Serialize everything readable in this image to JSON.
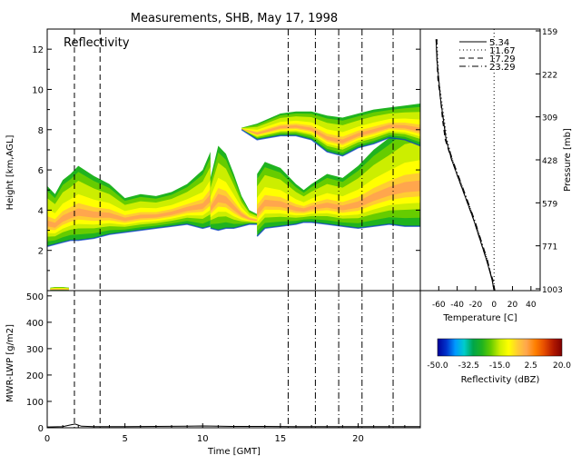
{
  "title": "Measurements, SHB, May 17, 1998",
  "colors": {
    "background": "#ffffff",
    "axes": "#000000",
    "colormap": [
      "#000099",
      "#0033cc",
      "#0099ff",
      "#00cccc",
      "#00a64a",
      "#1fb31f",
      "#66cc00",
      "#ccee00",
      "#ffff00",
      "#ffcc33",
      "#ffa64d",
      "#ff8000",
      "#e64d00",
      "#b31a00",
      "#800000"
    ]
  },
  "chart_data": [
    {
      "id": "reflectivity",
      "type": "heatmap",
      "panel_label": "Reflectivity",
      "ylabel": "Height [km,AGL]",
      "xlim": [
        0,
        24
      ],
      "ylim": [
        0,
        13
      ],
      "yticks": [
        "2",
        "4",
        "6",
        "8",
        "10",
        "12"
      ],
      "vertical_lines": {
        "dashed": [
          1.75,
          3.4
        ],
        "dashdot": [
          15.5,
          17.25,
          18.75,
          20.25,
          22.25
        ]
      },
      "echo_regions": [
        {
          "x": [
            0.0,
            0.5,
            1.0,
            1.5,
            2.0,
            3.0,
            4.0,
            5.0,
            6.0,
            7.0,
            8.0,
            9.0,
            10.0,
            10.5
          ],
          "top": [
            5.2,
            4.8,
            5.5,
            5.8,
            6.2,
            5.7,
            5.3,
            4.6,
            4.8,
            4.7,
            4.9,
            5.3,
            6.0,
            6.9
          ],
          "bottom": [
            2.2,
            2.3,
            2.4,
            2.5,
            2.5,
            2.6,
            2.8,
            2.9,
            3.0,
            3.1,
            3.2,
            3.3,
            3.1,
            3.2
          ]
        },
        {
          "x": [
            10.5,
            11.0,
            11.5,
            12.0,
            12.5,
            13.0,
            13.5
          ],
          "top": [
            5.6,
            7.2,
            6.8,
            5.8,
            4.7,
            4.0,
            3.8
          ],
          "bottom": [
            3.1,
            3.0,
            3.1,
            3.1,
            3.2,
            3.3,
            3.3
          ]
        },
        {
          "x": [
            13.5,
            14.0,
            15.0,
            16.0,
            16.5,
            17.0,
            18.0,
            19.0,
            20.0,
            21.0,
            22.0,
            23.0,
            24.0
          ],
          "top": [
            5.8,
            6.4,
            6.1,
            5.3,
            5.0,
            5.3,
            5.8,
            5.6,
            6.2,
            7.0,
            7.6,
            8.3,
            8.5
          ],
          "bottom": [
            2.7,
            3.1,
            3.2,
            3.3,
            3.4,
            3.4,
            3.3,
            3.2,
            3.1,
            3.2,
            3.3,
            3.2,
            3.2
          ]
        },
        {
          "x": [
            12.5,
            13.5,
            15.0,
            16.0,
            17.0,
            18.0,
            19.0,
            20.0,
            21.0,
            22.0,
            23.0,
            24.0
          ],
          "top": [
            8.1,
            8.3,
            8.8,
            8.9,
            8.9,
            8.7,
            8.6,
            8.8,
            9.0,
            9.1,
            9.2,
            9.3
          ],
          "bottom": [
            8.0,
            7.5,
            7.7,
            7.7,
            7.5,
            6.9,
            6.7,
            7.1,
            7.3,
            7.6,
            7.5,
            7.2
          ]
        },
        {
          "x": [
            0.2,
            0.5,
            1.0,
            1.4
          ],
          "top": [
            0.15,
            0.18,
            0.18,
            0.15
          ],
          "bottom": [
            0.0,
            0.0,
            0.0,
            0.0
          ]
        }
      ]
    },
    {
      "id": "temperature-profile",
      "type": "line",
      "xlabel": "Temperature [C]",
      "ylabel": "Pressure [mb]",
      "xlim": [
        -80,
        50
      ],
      "ylim_height_km": [
        0,
        13
      ],
      "xticks": [
        "-60",
        "-40",
        "-20",
        "0",
        "20",
        "40"
      ],
      "pressure_ticks": [
        "159",
        "222",
        "309",
        "428",
        "579",
        "771",
        "1003"
      ],
      "legend_position": "top",
      "series": [
        {
          "name": "5.34",
          "style": "solid",
          "x": [
            0,
            -2,
            -8,
            -15,
            -22,
            -30,
            -38,
            -46,
            -52,
            -55,
            -58,
            -60,
            -62,
            -63
          ],
          "y": [
            0.0,
            0.5,
            1.5,
            2.5,
            3.5,
            4.5,
            5.5,
            6.5,
            7.5,
            8.5,
            9.5,
            10.5,
            11.5,
            12.5
          ]
        },
        {
          "name": "11.67",
          "style": "dotted",
          "x": [
            0,
            -2,
            -7,
            -14,
            -21,
            -29,
            -37,
            -45,
            -51,
            -54,
            -57,
            -60,
            -61,
            -62
          ],
          "y": [
            0.0,
            0.5,
            1.5,
            2.5,
            3.5,
            4.5,
            5.5,
            6.5,
            7.5,
            8.5,
            9.5,
            10.5,
            11.5,
            12.5
          ]
        },
        {
          "name": "17.29",
          "style": "dashed",
          "x": [
            1,
            -1,
            -8,
            -15,
            -22,
            -30,
            -38,
            -46,
            -53,
            -56,
            -58,
            -61,
            -62,
            -63
          ],
          "y": [
            0.0,
            0.5,
            1.5,
            2.5,
            3.5,
            4.5,
            5.5,
            6.5,
            7.5,
            8.5,
            9.5,
            10.5,
            11.5,
            12.5
          ]
        },
        {
          "name": "23.29",
          "style": "dashdot",
          "x": [
            0,
            -2,
            -7,
            -14,
            -21,
            -29,
            -37,
            -45,
            -52,
            -55,
            -58,
            -60,
            -62,
            -62
          ],
          "y": [
            0.0,
            0.5,
            1.5,
            2.5,
            3.5,
            4.5,
            5.5,
            6.5,
            7.5,
            8.5,
            9.5,
            10.5,
            11.5,
            12.5
          ]
        }
      ],
      "reference_line_x": 0
    },
    {
      "id": "mwr-lwp",
      "type": "line",
      "xlabel": "Time [GMT]",
      "ylabel": "MWR-LWP [g/m2]",
      "xlim": [
        0,
        24
      ],
      "ylim": [
        0,
        520
      ],
      "xticks": [
        "0",
        "5",
        "10",
        "15",
        "20"
      ],
      "yticks": [
        "0",
        "100",
        "200",
        "300",
        "400",
        "500"
      ],
      "x": [
        0,
        1,
        1.6,
        1.8,
        2.2,
        3,
        5,
        7,
        9,
        10,
        11,
        12,
        14,
        16,
        18,
        20,
        22,
        24
      ],
      "y": [
        3,
        4,
        12,
        14,
        6,
        4,
        4,
        5,
        6,
        7,
        6,
        5,
        5,
        4,
        4,
        4,
        4,
        4
      ]
    },
    {
      "id": "colorbar",
      "type": "colorbar",
      "xlabel": "Reflectivity (dBZ)",
      "range": [
        -50,
        20
      ],
      "ticks": [
        "-50.0",
        "-32.5",
        "-15.0",
        "2.5",
        "20.0"
      ]
    }
  ]
}
